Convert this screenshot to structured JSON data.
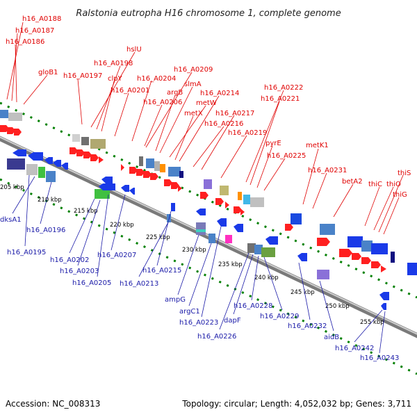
{
  "title": "Ralstonia eutropha H16 chromosome 1, complete genome",
  "footer": {
    "accession": "Accession: NC_008313",
    "topology": "Topology: circular; Length: 4,052,032 bp; Genes: 3,711"
  },
  "colors": {
    "forward": "#ff0000",
    "reverse": "#0000ee",
    "top_label": "#e00000",
    "bottom_label": "#1a1aa8",
    "backbone": "#909090",
    "ruler_dots": "#008000"
  },
  "ticks": [
    "205 kbp",
    "210 kbp",
    "215 kbp",
    "220 kbp",
    "225 kbp",
    "230 kbp",
    "235 kbp",
    "240 kbp",
    "245 kbp",
    "250 kbp",
    "255 kbp"
  ],
  "top_labels": [
    "h16_A0188",
    "h16_A0187",
    "h16_A0186",
    "gloB1",
    "h16_A0197",
    "hslU",
    "h16_A0198",
    "clpY",
    "h16_A0201",
    "h16_A0204",
    "h16_A0209",
    "slmA",
    "argB",
    "h16_A0206",
    "metW",
    "h16_A0214",
    "metX",
    "h16_A0217",
    "h16_A0216",
    "h16_A0219",
    "h16_A0222",
    "h16_A0221",
    "pyrE",
    "h16_A0225",
    "metK1",
    "h16_A0231",
    "betA2",
    "thiC",
    "thiO",
    "thiS",
    "thiG"
  ],
  "bottom_labels": [
    "dksA1",
    "h16_A0196",
    "h16_A0195",
    "h16_A0202",
    "h16_A0203",
    "h16_A0205",
    "h16_A0207",
    "h16_A0213",
    "h16_A0215",
    "ampG",
    "argC1",
    "h16_A0223",
    "h16_A0226",
    "dapF",
    "h16_A0228",
    "h16_A0229",
    "h16_A0232",
    "aidB",
    "h16_A0242",
    "h16_A0243"
  ]
}
